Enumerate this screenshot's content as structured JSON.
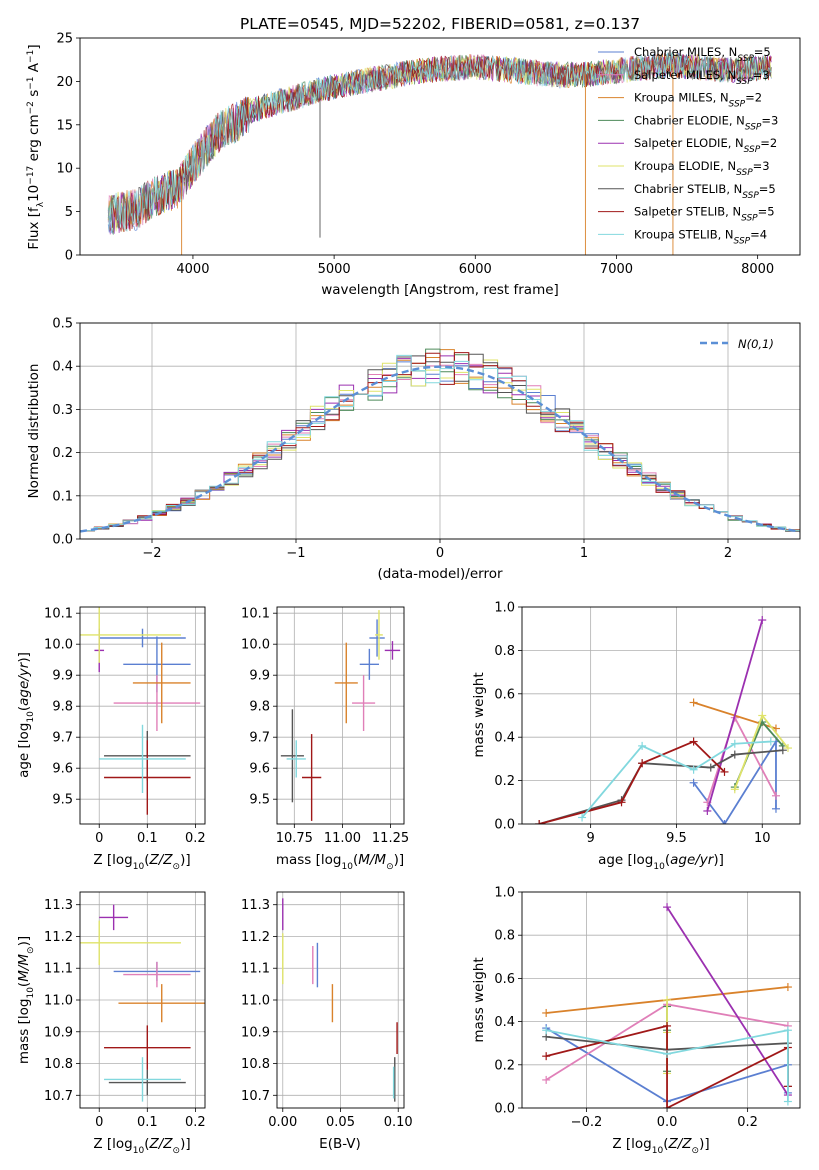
{
  "chart_data": [
    {
      "type": "line",
      "title": "PLATE=0545, MJD=52202, FIBERID=0581, z=0.137",
      "xlabel": "wavelength [Angstrom, rest frame]",
      "ylabel": "Flux [f_λ 10^-17 erg cm^-2 s^-1 A^-1]",
      "xlim": [
        3200,
        8300
      ],
      "ylim": [
        0,
        25
      ],
      "xticks": [
        4000,
        5000,
        6000,
        7000,
        8000
      ],
      "yticks": [
        0,
        5,
        10,
        15,
        20,
        25
      ],
      "grid": false,
      "legend_position": "top-right",
      "continuum": {
        "x": [
          3400,
          3500,
          3600,
          3700,
          3800,
          3900,
          4000,
          4100,
          4200,
          4300,
          4400,
          4600,
          4800,
          5000,
          5200,
          5400,
          5600,
          5800,
          6000,
          6200,
          6400,
          6600,
          6800,
          7000,
          7200,
          7400,
          7600,
          7800,
          8000,
          8100
        ],
        "y": [
          4.6,
          5.0,
          5.2,
          6.5,
          7.2,
          7.8,
          10.5,
          12.5,
          14.5,
          15.2,
          16.5,
          17.6,
          18.5,
          19.4,
          20.0,
          20.6,
          21.2,
          21.5,
          21.7,
          21.4,
          21.0,
          20.7,
          20.8,
          21.2,
          21.6,
          21.9,
          21.6,
          21.3,
          21.5,
          21.6
        ]
      },
      "series": [
        {
          "name": "Chabrier MILES, N_SSP=5",
          "color": "#5b7fd1"
        },
        {
          "name": "Salpeter MILES, N_SSP=3",
          "color": "#e07fb8"
        },
        {
          "name": "Kroupa MILES, N_SSP=2",
          "color": "#d9822b"
        },
        {
          "name": "Chabrier ELODIE, N_SSP=3",
          "color": "#4d8a5a"
        },
        {
          "name": "Salpeter ELODIE, N_SSP=2",
          "color": "#9b30b0"
        },
        {
          "name": "Kroupa ELODIE, N_SSP=3",
          "color": "#dfe36a"
        },
        {
          "name": "Chabrier STELIB, N_SSP=5",
          "color": "#555555"
        },
        {
          "name": "Salpeter STELIB, N_SSP=5",
          "color": "#a01818"
        },
        {
          "name": "Kroupa STELIB, N_SSP=4",
          "color": "#82d8de"
        }
      ]
    },
    {
      "type": "bar",
      "xlabel": "(data-model)/error",
      "ylabel": "Normed distribution",
      "xlim": [
        -2.5,
        2.5
      ],
      "ylim": [
        0,
        0.5
      ],
      "xticks": [
        -2,
        -1,
        0,
        1,
        2
      ],
      "xtick_labels": [
        "−2",
        "−1",
        "0",
        "1",
        "2"
      ],
      "yticks": [
        0.0,
        0.1,
        0.2,
        0.3,
        0.4,
        0.5
      ],
      "grid": true,
      "legend_position": "top-right",
      "model_line": {
        "name": "N(0,1)",
        "color": "#5b8fd6"
      },
      "bin_width": 0.1
    },
    {
      "type": "scatter",
      "xlabel": "Z [log10(Z/Z_sun)]",
      "ylabel": "age [log10(age/yr)]",
      "xlim": [
        -0.04,
        0.22
      ],
      "ylim": [
        9.42,
        10.12
      ],
      "xticks": [
        0.0,
        0.1,
        0.2
      ],
      "yticks": [
        9.5,
        9.6,
        9.7,
        9.8,
        9.9,
        10.0,
        10.1
      ],
      "grid": true,
      "points": [
        {
          "x": 0.09,
          "y": 10.02,
          "xerr": 0.09,
          "yerr": 0.03,
          "color": "#5b7fd1"
        },
        {
          "x": 0.12,
          "y": 9.935,
          "xerr": 0.07,
          "yerr": 0.09,
          "color": "#5b7fd1"
        },
        {
          "x": 0.12,
          "y": 9.81,
          "xerr": 0.09,
          "yerr": 0.09,
          "color": "#e07fb8"
        },
        {
          "x": 0.13,
          "y": 9.875,
          "xerr": 0.06,
          "yerr": 0.13,
          "color": "#d9822b"
        },
        {
          "x": 0.0,
          "y": 9.98,
          "xerr": 0.01,
          "yerr": 0.07,
          "color": "#9b30b0"
        },
        {
          "x": 0.0,
          "y": 10.03,
          "xerr": 0.17,
          "yerr": 0.09,
          "color": "#dfe36a"
        },
        {
          "x": 0.1,
          "y": 9.64,
          "xerr": 0.09,
          "yerr": 0.08,
          "color": "#555555"
        },
        {
          "x": 0.1,
          "y": 9.57,
          "xerr": 0.09,
          "yerr": 0.12,
          "color": "#a01818"
        },
        {
          "x": 0.09,
          "y": 9.63,
          "xerr": 0.09,
          "yerr": 0.11,
          "color": "#82d8de"
        }
      ]
    },
    {
      "type": "scatter",
      "xlabel": "mass [log10(M/M_sun)]",
      "ylabel": "",
      "xlim": [
        10.66,
        11.32
      ],
      "ylim": [
        9.42,
        10.12
      ],
      "xticks": [
        10.75,
        11.0,
        11.25
      ],
      "xtick_labels": [
        "10.75",
        "11.00",
        "11.25"
      ],
      "yticks": [
        9.5,
        9.6,
        9.7,
        9.8,
        9.9,
        10.0,
        10.1
      ],
      "grid": true,
      "points": [
        {
          "x": 11.18,
          "y": 10.02,
          "xerr": 0.04,
          "yerr": 0.06,
          "color": "#5b7fd1"
        },
        {
          "x": 11.14,
          "y": 9.935,
          "xerr": 0.05,
          "yerr": 0.05,
          "color": "#5b7fd1"
        },
        {
          "x": 11.11,
          "y": 9.81,
          "xerr": 0.06,
          "yerr": 0.09,
          "color": "#e07fb8"
        },
        {
          "x": 11.02,
          "y": 9.875,
          "xerr": 0.06,
          "yerr": 0.13,
          "color": "#d9822b"
        },
        {
          "x": 11.26,
          "y": 9.98,
          "xerr": 0.04,
          "yerr": 0.03,
          "color": "#9b30b0"
        },
        {
          "x": 11.19,
          "y": 10.03,
          "xerr": 0.02,
          "yerr": 0.08,
          "color": "#dfe36a"
        },
        {
          "x": 10.74,
          "y": 9.64,
          "xerr": 0.06,
          "yerr": 0.15,
          "color": "#555555"
        },
        {
          "x": 10.84,
          "y": 9.57,
          "xerr": 0.05,
          "yerr": 0.14,
          "color": "#a01818"
        },
        {
          "x": 10.76,
          "y": 9.63,
          "xerr": 0.05,
          "yerr": 0.06,
          "color": "#82d8de"
        }
      ]
    },
    {
      "type": "line",
      "xlabel": "age [log10(age/yr)]",
      "ylabel": "mass weight",
      "xlim": [
        8.6,
        10.22
      ],
      "ylim": [
        0,
        1.0
      ],
      "xticks": [
        9.0,
        9.5,
        10.0
      ],
      "yticks": [
        0.0,
        0.2,
        0.4,
        0.6,
        0.8,
        1.0
      ],
      "grid": true,
      "series": [
        {
          "name": "Chabrier MILES",
          "color": "#5b7fd1",
          "x": [
            9.6,
            9.78,
            10.08,
            10.08
          ],
          "y": [
            0.19,
            0.0,
            0.38,
            0.07
          ]
        },
        {
          "name": "Salpeter MILES",
          "color": "#e07fb8",
          "x": [
            9.68,
            9.84,
            10.08
          ],
          "y": [
            0.1,
            0.49,
            0.13
          ]
        },
        {
          "name": "Kroupa MILES",
          "color": "#d9822b",
          "x": [
            9.6,
            10.08
          ],
          "y": [
            0.56,
            0.44
          ]
        },
        {
          "name": "Chabrier ELODIE",
          "color": "#4d8a5a",
          "x": [
            9.84,
            10.0,
            10.12
          ],
          "y": [
            0.17,
            0.47,
            0.36
          ]
        },
        {
          "name": "Salpeter ELODIE",
          "color": "#9b30b0",
          "x": [
            9.68,
            10.0
          ],
          "y": [
            0.06,
            0.94
          ]
        },
        {
          "name": "Kroupa ELODIE",
          "color": "#dfe36a",
          "x": [
            9.84,
            10.0,
            10.15
          ],
          "y": [
            0.16,
            0.5,
            0.35
          ]
        },
        {
          "name": "Chabrier STELIB",
          "color": "#555555",
          "x": [
            8.7,
            9.18,
            9.3,
            9.7,
            9.84,
            10.12
          ],
          "y": [
            0.0,
            0.11,
            0.28,
            0.26,
            0.32,
            0.34
          ]
        },
        {
          "name": "Salpeter STELIB",
          "color": "#a01818",
          "x": [
            8.7,
            9.18,
            9.3,
            9.6,
            9.78
          ],
          "y": [
            0.0,
            0.1,
            0.28,
            0.38,
            0.24
          ]
        },
        {
          "name": "Kroupa STELIB",
          "color": "#82d8de",
          "x": [
            8.95,
            9.3,
            9.6,
            9.84,
            10.05
          ],
          "y": [
            0.03,
            0.36,
            0.25,
            0.37,
            0.38
          ]
        }
      ]
    },
    {
      "type": "scatter",
      "xlabel": "Z [log10(Z/Z_sun)]",
      "ylabel": "mass [log10(M/M_sun)]",
      "xlim": [
        -0.04,
        0.22
      ],
      "ylim": [
        10.66,
        11.34
      ],
      "xticks": [
        0.0,
        0.1,
        0.2
      ],
      "yticks": [
        10.7,
        10.8,
        10.9,
        11.0,
        11.1,
        11.2,
        11.3
      ],
      "grid": true,
      "points": [
        {
          "x": 0.12,
          "y": 11.09,
          "xerr": 0.09,
          "yerr": 0.03,
          "color": "#5b7fd1"
        },
        {
          "x": 0.12,
          "y": 11.08,
          "xerr": 0.07,
          "yerr": 0.04,
          "color": "#e07fb8"
        },
        {
          "x": 0.13,
          "y": 10.99,
          "xerr": 0.09,
          "yerr": 0.06,
          "color": "#d9822b"
        },
        {
          "x": 0.03,
          "y": 11.26,
          "xerr": 0.03,
          "yerr": 0.04,
          "color": "#9b30b0"
        },
        {
          "x": 0.0,
          "y": 11.18,
          "xerr": 0.17,
          "yerr": 0.07,
          "color": "#dfe36a"
        },
        {
          "x": 0.1,
          "y": 10.74,
          "xerr": 0.08,
          "yerr": 0.04,
          "color": "#555555"
        },
        {
          "x": 0.1,
          "y": 10.85,
          "xerr": 0.09,
          "yerr": 0.07,
          "color": "#a01818"
        },
        {
          "x": 0.09,
          "y": 10.75,
          "xerr": 0.08,
          "yerr": 0.07,
          "color": "#82d8de"
        }
      ]
    },
    {
      "type": "scatter",
      "xlabel": "E(B-V)",
      "ylabel": "",
      "xlim": [
        -0.005,
        0.105
      ],
      "ylim": [
        10.66,
        11.34
      ],
      "xticks": [
        0.0,
        0.05,
        0.1
      ],
      "xtick_labels": [
        "0.00",
        "0.05",
        "0.10"
      ],
      "yticks": [
        10.7,
        10.8,
        10.9,
        11.0,
        11.1,
        11.2,
        11.3
      ],
      "grid": true,
      "points": [
        {
          "x": 0.03,
          "y": 11.11,
          "xerr": 0,
          "yerr": 0.07,
          "color": "#5b7fd1"
        },
        {
          "x": 0.026,
          "y": 11.11,
          "xerr": 0,
          "yerr": 0.06,
          "color": "#e07fb8"
        },
        {
          "x": 0.043,
          "y": 10.99,
          "xerr": 0,
          "yerr": 0.06,
          "color": "#d9822b"
        },
        {
          "x": 0.0,
          "y": 11.27,
          "xerr": 0,
          "yerr": 0.05,
          "color": "#9b30b0"
        },
        {
          "x": 0.0,
          "y": 11.13,
          "xerr": 0,
          "yerr": 0.08,
          "color": "#dfe36a"
        },
        {
          "x": 0.097,
          "y": 10.75,
          "xerr": 0,
          "yerr": 0.07,
          "color": "#555555"
        },
        {
          "x": 0.099,
          "y": 10.88,
          "xerr": 0,
          "yerr": 0.05,
          "color": "#a01818"
        },
        {
          "x": 0.096,
          "y": 10.74,
          "xerr": 0,
          "yerr": 0.05,
          "color": "#82d8de"
        }
      ]
    },
    {
      "type": "line",
      "xlabel": "Z [log10(Z/Z_sun)]",
      "ylabel": "mass weight",
      "xlim": [
        -0.36,
        0.33
      ],
      "ylim": [
        0,
        1.0
      ],
      "xticks": [
        -0.2,
        0.0,
        0.2
      ],
      "xtick_labels": [
        "−0.2",
        "0.0",
        "0.2"
      ],
      "yticks": [
        0.0,
        0.2,
        0.4,
        0.6,
        0.8,
        1.0
      ],
      "grid": true,
      "series": [
        {
          "name": "Chabrier MILES",
          "color": "#5b7fd1",
          "x": [
            -0.3,
            0.0,
            0.3,
            0.3
          ],
          "y": [
            0.37,
            0.03,
            0.2,
            0.07
          ]
        },
        {
          "name": "Salpeter MILES",
          "color": "#e07fb8",
          "x": [
            -0.3,
            0.0,
            0.3
          ],
          "y": [
            0.13,
            0.48,
            0.38
          ]
        },
        {
          "name": "Kroupa MILES",
          "color": "#d9822b",
          "x": [
            -0.3,
            0.3
          ],
          "y": [
            0.44,
            0.56
          ]
        },
        {
          "name": "Chabrier ELODIE",
          "color": "#4d8a5a",
          "x": [
            0.0,
            0.0,
            0.0
          ],
          "y": [
            0.47,
            0.36,
            0.17
          ]
        },
        {
          "name": "Salpeter ELODIE",
          "color": "#9b30b0",
          "x": [
            0.0,
            0.3
          ],
          "y": [
            0.93,
            0.06
          ]
        },
        {
          "name": "Kroupa ELODIE",
          "color": "#dfe36a",
          "x": [
            0.0,
            0.0,
            0.0
          ],
          "y": [
            0.5,
            0.35,
            0.16
          ]
        },
        {
          "name": "Chabrier STELIB",
          "color": "#555555",
          "x": [
            -0.3,
            0.0,
            0.3,
            0.3
          ],
          "y": [
            0.33,
            0.27,
            0.3,
            0.1
          ]
        },
        {
          "name": "Salpeter STELIB",
          "color": "#a01818",
          "x": [
            -0.3,
            0.0,
            0.0,
            0.3,
            0.3
          ],
          "y": [
            0.24,
            0.38,
            0.0,
            0.28,
            0.1
          ]
        },
        {
          "name": "Kroupa STELIB",
          "color": "#82d8de",
          "x": [
            -0.3,
            0.0,
            0.3,
            0.3
          ],
          "y": [
            0.36,
            0.25,
            0.36,
            0.03
          ]
        }
      ]
    }
  ]
}
